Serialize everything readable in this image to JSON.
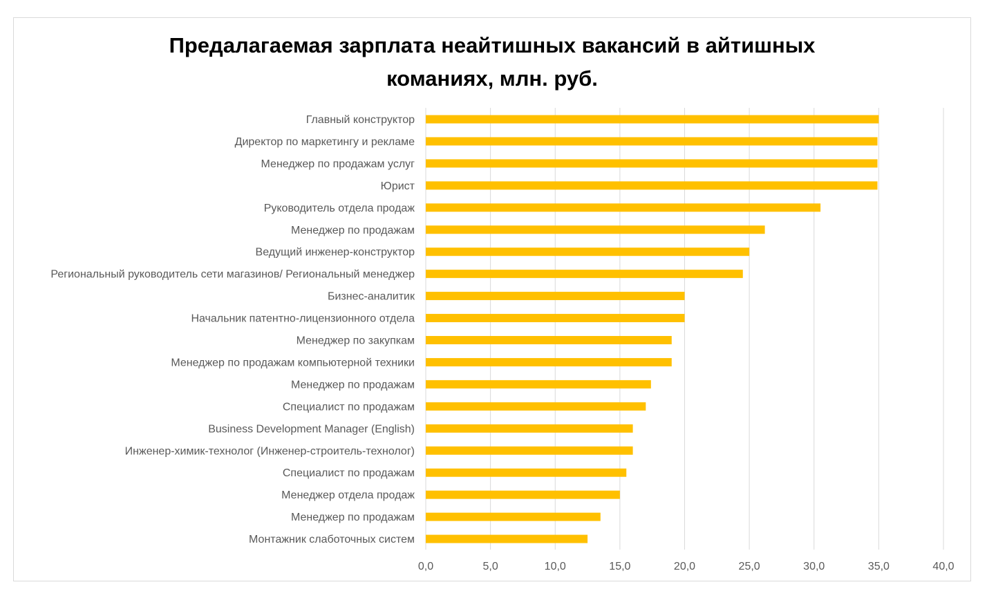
{
  "chart_data": {
    "type": "bar",
    "orientation": "horizontal",
    "title_lines": [
      "Предалагаемая зарплата неайтишных вакансий в айтишных",
      "команиях, млн. руб."
    ],
    "categories": [
      "Главный конструктор",
      "Директор по маркетингу и рекламе",
      "Менеджер по продажам услуг",
      "Юрист",
      "Руководитель отдела продаж",
      "Менеджер по продажам",
      "Ведущий инженер-конструктор",
      "Региональный руководитель сети магазинов/ Региональный менеджер",
      "Бизнес-аналитик",
      "Начальник патентно-лицензионного отдела",
      "Менеджер по закупкам",
      "Менеджер по продажам компьютерной техники",
      "Менеджер по продажам",
      "Специалист по продажам",
      "Business Development Manager (English)",
      "Инженер-химик-технолог (Инженер-строитель-технолог)",
      "Специалист по продажам",
      "Менеджер отдела продаж",
      "Менеджер по продажам",
      "Монтажник слаботочных систем"
    ],
    "values": [
      35.0,
      34.9,
      34.9,
      34.9,
      30.5,
      26.2,
      25.0,
      24.5,
      20.0,
      20.0,
      19.0,
      19.0,
      17.4,
      17.0,
      16.0,
      16.0,
      15.5,
      15.0,
      13.5,
      12.5
    ],
    "xlim": [
      0,
      40
    ],
    "xticks": [
      0,
      5,
      10,
      15,
      20,
      25,
      30,
      35,
      40
    ],
    "xtick_labels": [
      "0,0",
      "5,0",
      "10,0",
      "15,0",
      "20,0",
      "25,0",
      "30,0",
      "35,0",
      "40,0"
    ],
    "xlabel": "",
    "ylabel": "",
    "grid": "vertical",
    "legend": "none",
    "bar_color": "#FFC000",
    "grid_color": "#d9d9d9",
    "label_color": "#595959"
  }
}
